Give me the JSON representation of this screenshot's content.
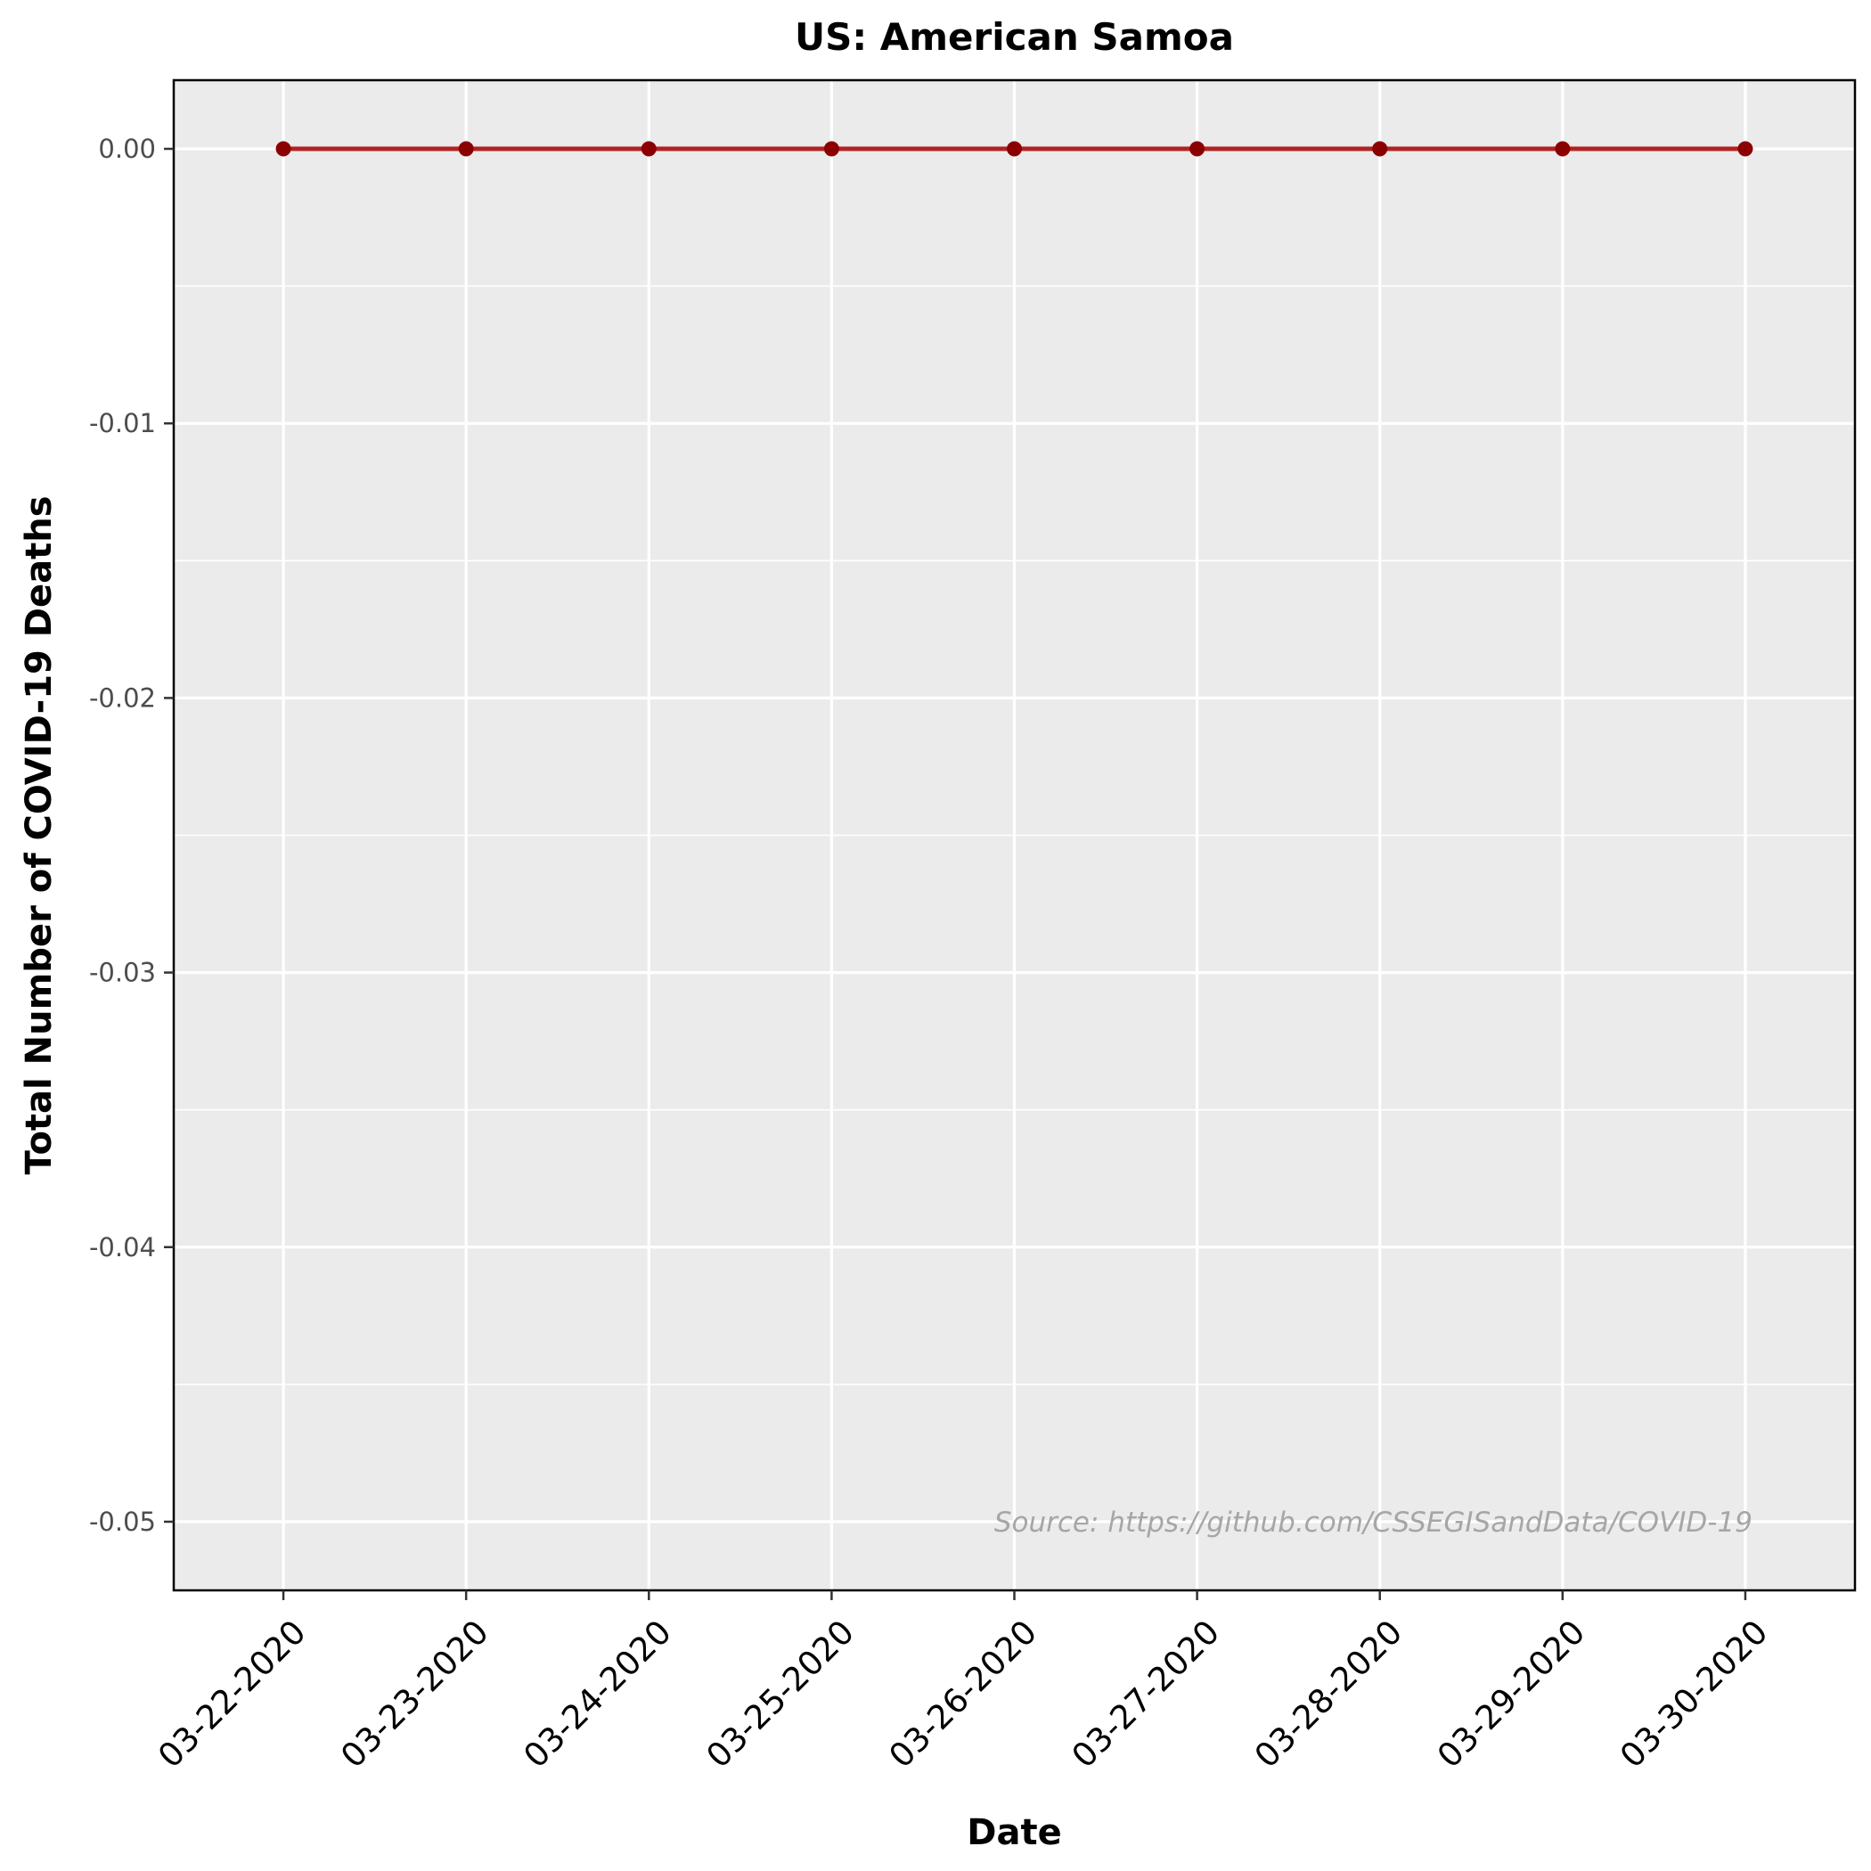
{
  "chart_data": {
    "type": "line",
    "title": "US: American Samoa",
    "xlabel": "Date",
    "ylabel": "Total Number of COVID-19 Deaths",
    "categories": [
      "03-22-2020",
      "03-23-2020",
      "03-24-2020",
      "03-25-2020",
      "03-26-2020",
      "03-27-2020",
      "03-28-2020",
      "03-29-2020",
      "03-30-2020"
    ],
    "series": [
      {
        "values": [
          0,
          0,
          0,
          0,
          0,
          0,
          0,
          0,
          0
        ]
      }
    ],
    "ylim": [
      -0.0525,
      0.0025
    ],
    "yticks": [
      0.0,
      -0.01,
      -0.02,
      -0.03,
      -0.04,
      -0.05
    ],
    "ytick_labels": [
      "0.00",
      "-0.01",
      "-0.02",
      "-0.03",
      "-0.04",
      "-0.05"
    ],
    "grid": true,
    "annotation": "Source: https://github.com/CSSEGISandData/COVID-19",
    "colors": {
      "panel_background": "#ebebeb",
      "grid": "#ffffff",
      "line": "#b22222",
      "point": "#8b0000",
      "annotation": "#a6a6a6"
    }
  }
}
